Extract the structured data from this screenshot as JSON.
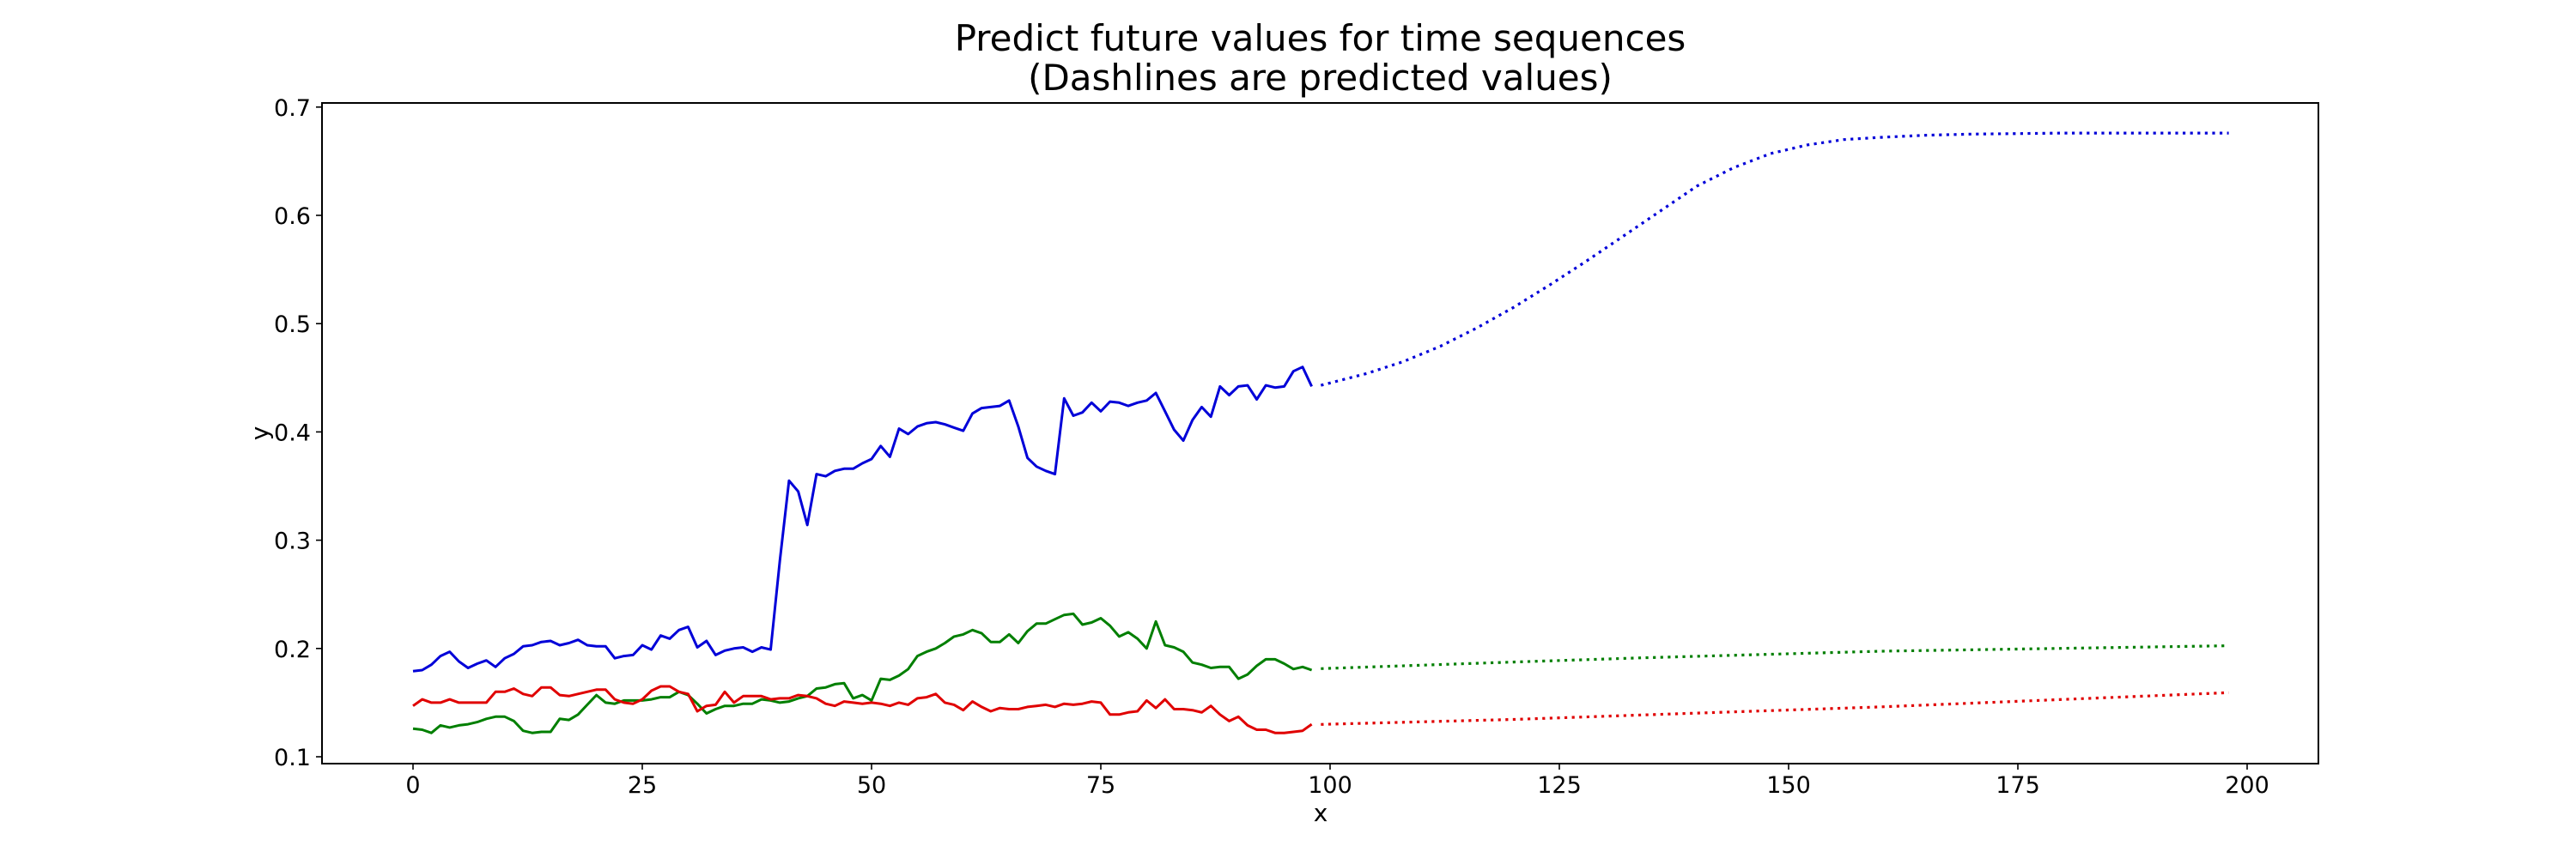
{
  "title": {
    "line1": "Predict future values for time sequences",
    "line2": "(Dashlines are predicted values)"
  },
  "chart_data": {
    "type": "line",
    "title": "Predict future values for time sequences\n(Dashlines are predicted values)",
    "xlabel": "x",
    "ylabel": "y",
    "xlim": [
      -9.9,
      208
    ],
    "ylim": [
      0.0935,
      0.704
    ],
    "xticks": [
      0,
      25,
      50,
      75,
      100,
      125,
      150,
      175,
      200
    ],
    "xtick_labels": [
      "0",
      "25",
      "50",
      "75",
      "100",
      "125",
      "150",
      "175",
      "200"
    ],
    "yticks": [
      0.1,
      0.2,
      0.3,
      0.4,
      0.5,
      0.6,
      0.7
    ],
    "ytick_labels": [
      "0.1",
      "0.2",
      "0.3",
      "0.4",
      "0.5",
      "0.6",
      "0.7"
    ],
    "grid": false,
    "legend": null,
    "series": [
      {
        "name": "blue-actual",
        "color": "#0000d8",
        "style": "solid",
        "x_start": 0,
        "values": [
          0.179,
          0.18,
          0.185,
          0.193,
          0.197,
          0.188,
          0.182,
          0.186,
          0.189,
          0.183,
          0.191,
          0.195,
          0.202,
          0.203,
          0.206,
          0.207,
          0.203,
          0.205,
          0.208,
          0.203,
          0.202,
          0.202,
          0.191,
          0.193,
          0.194,
          0.203,
          0.199,
          0.212,
          0.209,
          0.217,
          0.22,
          0.201,
          0.207,
          0.194,
          0.198,
          0.2,
          0.201,
          0.197,
          0.201,
          0.199,
          0.281,
          0.355,
          0.345,
          0.314,
          0.361,
          0.359,
          0.364,
          0.366,
          0.366,
          0.371,
          0.375,
          0.387,
          0.377,
          0.403,
          0.398,
          0.405,
          0.408,
          0.409,
          0.407,
          0.404,
          0.401,
          0.417,
          0.422,
          0.423,
          0.424,
          0.429,
          0.405,
          0.376,
          0.368,
          0.364,
          0.361,
          0.431,
          0.415,
          0.418,
          0.427,
          0.419,
          0.428,
          0.427,
          0.424,
          0.427,
          0.429,
          0.436,
          0.419,
          0.402,
          0.392,
          0.411,
          0.423,
          0.414,
          0.442,
          0.434,
          0.442,
          0.443,
          0.43,
          0.443,
          0.441,
          0.442,
          0.456,
          0.46,
          0.442
        ]
      },
      {
        "name": "green-actual",
        "color": "#007f00",
        "style": "solid",
        "x_start": 0,
        "values": [
          0.126,
          0.125,
          0.122,
          0.129,
          0.127,
          0.129,
          0.13,
          0.132,
          0.135,
          0.137,
          0.137,
          0.133,
          0.124,
          0.122,
          0.123,
          0.123,
          0.135,
          0.134,
          0.139,
          0.148,
          0.157,
          0.15,
          0.149,
          0.152,
          0.152,
          0.152,
          0.153,
          0.155,
          0.155,
          0.16,
          0.157,
          0.149,
          0.14,
          0.144,
          0.147,
          0.147,
          0.149,
          0.149,
          0.153,
          0.152,
          0.15,
          0.151,
          0.154,
          0.156,
          0.163,
          0.164,
          0.167,
          0.168,
          0.154,
          0.157,
          0.152,
          0.172,
          0.171,
          0.175,
          0.181,
          0.193,
          0.197,
          0.2,
          0.205,
          0.211,
          0.213,
          0.217,
          0.214,
          0.206,
          0.206,
          0.213,
          0.205,
          0.216,
          0.223,
          0.223,
          0.227,
          0.231,
          0.232,
          0.222,
          0.224,
          0.228,
          0.221,
          0.211,
          0.215,
          0.209,
          0.2,
          0.225,
          0.203,
          0.201,
          0.197,
          0.187,
          0.185,
          0.182,
          0.183,
          0.183,
          0.172,
          0.176,
          0.184,
          0.19,
          0.19,
          0.186,
          0.181,
          0.183,
          0.18
        ]
      },
      {
        "name": "red-actual",
        "color": "#e00000",
        "style": "solid",
        "x_start": 0,
        "values": [
          0.147,
          0.153,
          0.15,
          0.15,
          0.153,
          0.15,
          0.15,
          0.15,
          0.15,
          0.16,
          0.16,
          0.163,
          0.158,
          0.156,
          0.164,
          0.164,
          0.157,
          0.156,
          0.158,
          0.16,
          0.162,
          0.162,
          0.153,
          0.15,
          0.149,
          0.153,
          0.161,
          0.165,
          0.165,
          0.16,
          0.158,
          0.142,
          0.147,
          0.148,
          0.16,
          0.15,
          0.156,
          0.156,
          0.156,
          0.153,
          0.154,
          0.154,
          0.157,
          0.156,
          0.154,
          0.149,
          0.147,
          0.151,
          0.15,
          0.149,
          0.15,
          0.149,
          0.147,
          0.15,
          0.148,
          0.154,
          0.155,
          0.158,
          0.15,
          0.148,
          0.143,
          0.151,
          0.146,
          0.142,
          0.145,
          0.144,
          0.144,
          0.146,
          0.147,
          0.148,
          0.146,
          0.149,
          0.148,
          0.149,
          0.151,
          0.15,
          0.139,
          0.139,
          0.141,
          0.142,
          0.152,
          0.145,
          0.153,
          0.144,
          0.144,
          0.143,
          0.141,
          0.147,
          0.139,
          0.133,
          0.137,
          0.129,
          0.125,
          0.125,
          0.122,
          0.122,
          0.123,
          0.124,
          0.13
        ]
      },
      {
        "name": "blue-predicted",
        "color": "#0000d8",
        "style": "dotted",
        "points": [
          [
            99,
            0.443
          ],
          [
            104,
            0.454
          ],
          [
            108,
            0.465
          ],
          [
            112,
            0.479
          ],
          [
            116,
            0.496
          ],
          [
            120,
            0.515
          ],
          [
            124,
            0.536
          ],
          [
            128,
            0.558
          ],
          [
            132,
            0.581
          ],
          [
            136,
            0.604
          ],
          [
            140,
            0.627
          ],
          [
            144,
            0.644
          ],
          [
            148,
            0.657
          ],
          [
            152,
            0.665
          ],
          [
            156,
            0.67
          ],
          [
            160,
            0.672
          ],
          [
            165,
            0.674
          ],
          [
            170,
            0.675
          ],
          [
            180,
            0.676
          ],
          [
            198,
            0.676
          ]
        ]
      },
      {
        "name": "green-predicted",
        "color": "#007f00",
        "style": "dotted",
        "points": [
          [
            99,
            0.1814
          ],
          [
            120,
            0.1875
          ],
          [
            134,
            0.1914
          ],
          [
            160,
            0.1975
          ],
          [
            198,
            0.2025
          ]
        ]
      },
      {
        "name": "red-predicted",
        "color": "#e00000",
        "style": "dotted",
        "points": [
          [
            99,
            0.1299
          ],
          [
            120,
            0.1345
          ],
          [
            134,
            0.1386
          ],
          [
            160,
            0.146
          ],
          [
            198,
            0.1592
          ]
        ]
      }
    ]
  }
}
